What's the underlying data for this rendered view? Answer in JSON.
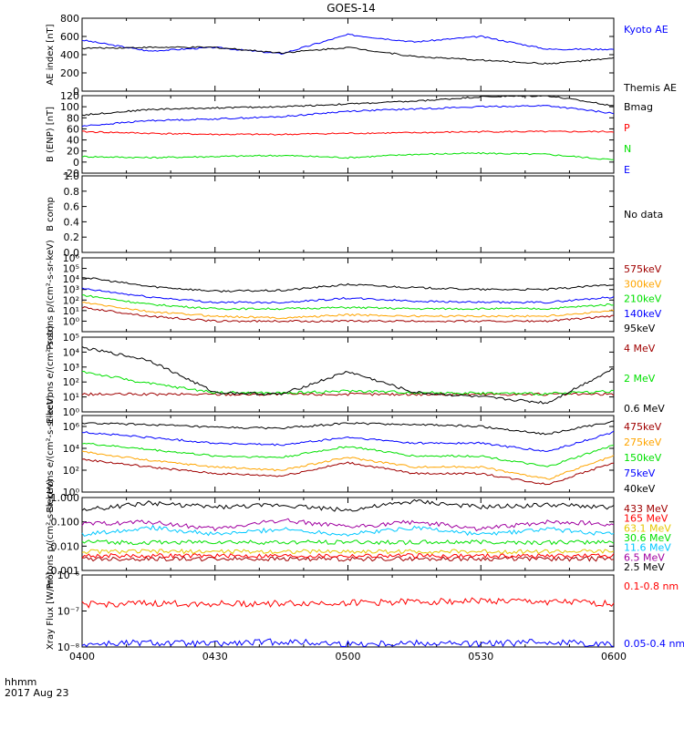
{
  "title": "GOES-14",
  "time_axis": {
    "ticks": [
      "0400",
      "0430",
      "0500",
      "0530",
      "0600"
    ],
    "corner_label": "hhmm",
    "date_label": "2017 Aug 23"
  },
  "colors": {
    "black": "#000000",
    "blue": "#0000ff",
    "red": "#ff0000",
    "green": "#00e000",
    "darkred": "#a00000",
    "orange": "#ffa500",
    "cyan": "#00c8ff",
    "yellow": "#e6c800",
    "purple": "#a000a0"
  },
  "chart_data": [
    {
      "id": "ae",
      "type": "line",
      "ylabel": "AE index [nT]",
      "scale": "linear",
      "ylim": [
        0,
        800
      ],
      "yticks": [
        "0",
        "200",
        "400",
        "600",
        "800"
      ],
      "x": [
        0,
        15,
        30,
        45,
        60,
        75,
        90,
        105,
        120
      ],
      "series": [
        {
          "name": "Kyoto AE",
          "color": "blue",
          "values": [
            560,
            440,
            480,
            410,
            620,
            540,
            600,
            460,
            460
          ]
        },
        {
          "name": "Themis AE",
          "color": "black",
          "values": [
            470,
            480,
            480,
            420,
            480,
            380,
            340,
            300,
            360
          ]
        }
      ]
    },
    {
      "id": "b",
      "type": "line",
      "ylabel": "B (ENP) [nT]",
      "scale": "linear",
      "ylim": [
        -20,
        120
      ],
      "yticks": [
        "-20",
        "0",
        "20",
        "40",
        "60",
        "80",
        "100",
        "120"
      ],
      "x": [
        0,
        15,
        30,
        45,
        60,
        75,
        90,
        105,
        120
      ],
      "series": [
        {
          "name": "Bmag",
          "color": "black",
          "values": [
            85,
            95,
            98,
            100,
            105,
            110,
            118,
            120,
            102
          ]
        },
        {
          "name": "P",
          "color": "red",
          "values": [
            55,
            52,
            50,
            50,
            52,
            53,
            55,
            55,
            55
          ]
        },
        {
          "name": "N",
          "color": "green",
          "values": [
            10,
            8,
            10,
            12,
            8,
            14,
            16,
            14,
            4
          ]
        },
        {
          "name": "E",
          "color": "blue",
          "values": [
            65,
            75,
            78,
            82,
            92,
            96,
            100,
            102,
            88
          ]
        }
      ]
    },
    {
      "id": "bcomp",
      "type": "line",
      "ylabel": "B comp",
      "scale": "linear",
      "ylim": [
        0,
        1
      ],
      "yticks": [
        "0.0",
        "0.2",
        "0.4",
        "0.6",
        "0.8",
        "1.0"
      ],
      "series": [],
      "note": "No data"
    },
    {
      "id": "protons",
      "type": "line",
      "ylabel": "Protons p/(cm²-s-sr-keV)",
      "scale": "log",
      "ylim": [
        0.1,
        1000000
      ],
      "yticks": [
        "10⁰",
        "10¹",
        "10²",
        "10³",
        "10⁴",
        "10⁵",
        "10⁶"
      ],
      "x": [
        0,
        15,
        30,
        45,
        60,
        75,
        90,
        105,
        120
      ],
      "series": [
        {
          "name": "575keV",
          "color": "darkred",
          "values": [
            20,
            3,
            1,
            1,
            1,
            1,
            1,
            1,
            3
          ]
        },
        {
          "name": "300keV",
          "color": "orange",
          "values": [
            60,
            8,
            3,
            2,
            4,
            3,
            3,
            3,
            10
          ]
        },
        {
          "name": "210keV",
          "color": "green",
          "values": [
            300,
            40,
            15,
            15,
            20,
            15,
            15,
            15,
            40
          ]
        },
        {
          "name": "140keV",
          "color": "blue",
          "values": [
            1200,
            200,
            60,
            60,
            150,
            80,
            60,
            60,
            200
          ]
        },
        {
          "name": "95keV",
          "color": "black",
          "values": [
            15000,
            2000,
            700,
            800,
            3000,
            1500,
            1000,
            1000,
            3000
          ]
        }
      ]
    },
    {
      "id": "electrons_hi",
      "type": "line",
      "ylabel": "Electrons e/(cm²-s-sr)",
      "scale": "log",
      "ylim": [
        1,
        100000
      ],
      "yticks": [
        "10⁰",
        "10¹",
        "10²",
        "10³",
        "10⁴",
        "10⁵"
      ],
      "x": [
        0,
        15,
        30,
        45,
        60,
        75,
        90,
        105,
        120
      ],
      "series": [
        {
          "name": "4 MeV",
          "color": "darkred",
          "values": [
            15,
            15,
            15,
            15,
            15,
            15,
            15,
            15,
            15
          ]
        },
        {
          "name": "2 MeV",
          "color": "green",
          "values": [
            500,
            80,
            20,
            18,
            25,
            20,
            18,
            16,
            25
          ]
        },
        {
          "name": "0.6 MeV",
          "color": "black",
          "values": [
            20000,
            3000,
            20,
            15,
            500,
            20,
            10,
            4,
            800
          ]
        }
      ]
    },
    {
      "id": "electrons_lo",
      "type": "line",
      "ylabel": "Electrons e/(cm²-s-sr-keV)",
      "scale": "log",
      "ylim": [
        1,
        10000000
      ],
      "yticks": [
        "10⁰",
        "10²",
        "10⁴",
        "10⁶"
      ],
      "x": [
        0,
        15,
        30,
        45,
        60,
        75,
        90,
        105,
        120
      ],
      "series": [
        {
          "name": "475keV",
          "color": "darkred",
          "values": [
            1000,
            200,
            50,
            30,
            500,
            50,
            50,
            5,
            500
          ]
        },
        {
          "name": "275keV",
          "color": "orange",
          "values": [
            5000,
            800,
            200,
            100,
            1500,
            200,
            200,
            15,
            2000
          ]
        },
        {
          "name": "150keV",
          "color": "green",
          "values": [
            30000,
            8000,
            2000,
            1500,
            15000,
            2000,
            2000,
            200,
            20000
          ]
        },
        {
          "name": "75keV",
          "color": "blue",
          "values": [
            300000,
            100000,
            30000,
            20000,
            100000,
            30000,
            30000,
            5000,
            300000
          ]
        },
        {
          "name": "40keV",
          "color": "black",
          "values": [
            2000000,
            1500000,
            800000,
            700000,
            2000000,
            1500000,
            1000000,
            200000,
            3000000
          ]
        }
      ]
    },
    {
      "id": "protons_hi",
      "type": "line",
      "ylabel": "Protons p/(cm²-s-sr-keV)",
      "scale": "log",
      "ylim": [
        0.001,
        1
      ],
      "yticks": [
        "0.001",
        "0.010",
        "0.100",
        "1.000"
      ],
      "x": [
        0,
        15,
        30,
        45,
        60,
        75,
        90,
        105,
        120
      ],
      "series": [
        {
          "name": "433 MeV",
          "color": "darkred",
          "values": [
            0.003,
            0.003,
            0.003,
            0.003,
            0.003,
            0.003,
            0.003,
            0.003,
            0.003
          ]
        },
        {
          "name": "165 MeV",
          "color": "red",
          "values": [
            0.004,
            0.004,
            0.004,
            0.004,
            0.004,
            0.004,
            0.004,
            0.004,
            0.004
          ]
        },
        {
          "name": "63.1 MeV",
          "color": "yellow",
          "values": [
            0.006,
            0.006,
            0.006,
            0.006,
            0.006,
            0.006,
            0.006,
            0.006,
            0.006
          ]
        },
        {
          "name": "30.6 MeV",
          "color": "green",
          "values": [
            0.015,
            0.014,
            0.015,
            0.014,
            0.015,
            0.014,
            0.015,
            0.014,
            0.015
          ]
        },
        {
          "name": "11.6 MeV",
          "color": "cyan",
          "values": [
            0.03,
            0.06,
            0.03,
            0.05,
            0.03,
            0.06,
            0.03,
            0.05,
            0.03
          ]
        },
        {
          "name": "6.5 MeV",
          "color": "purple",
          "values": [
            0.08,
            0.1,
            0.05,
            0.12,
            0.06,
            0.1,
            0.05,
            0.1,
            0.08
          ]
        },
        {
          "name": "2.5 MeV",
          "color": "black",
          "values": [
            0.3,
            0.6,
            0.4,
            0.5,
            0.3,
            0.7,
            0.4,
            0.5,
            0.4
          ]
        }
      ]
    },
    {
      "id": "xray",
      "type": "line",
      "ylabel": "Xray Flux [W/m²]",
      "scale": "log",
      "ylim": [
        1e-08,
        1e-06
      ],
      "yticks": [
        "10⁻⁸",
        "10⁻⁷",
        "10⁻⁶"
      ],
      "x": [
        0,
        15,
        30,
        45,
        60,
        75,
        90,
        105,
        120
      ],
      "series": [
        {
          "name": "0.1-0.8 nm",
          "color": "red",
          "values": [
            1.5e-07,
            1.6e-07,
            1.6e-07,
            1.6e-07,
            1.7e-07,
            1.8e-07,
            1.9e-07,
            1.8e-07,
            1.6e-07
          ]
        },
        {
          "name": "0.05-0.4 nm",
          "color": "blue",
          "values": [
            1.2e-08,
            1.3e-08,
            1.2e-08,
            1.4e-08,
            1.2e-08,
            1.3e-08,
            1.2e-08,
            1.4e-08,
            1.2e-08
          ]
        }
      ]
    }
  ]
}
